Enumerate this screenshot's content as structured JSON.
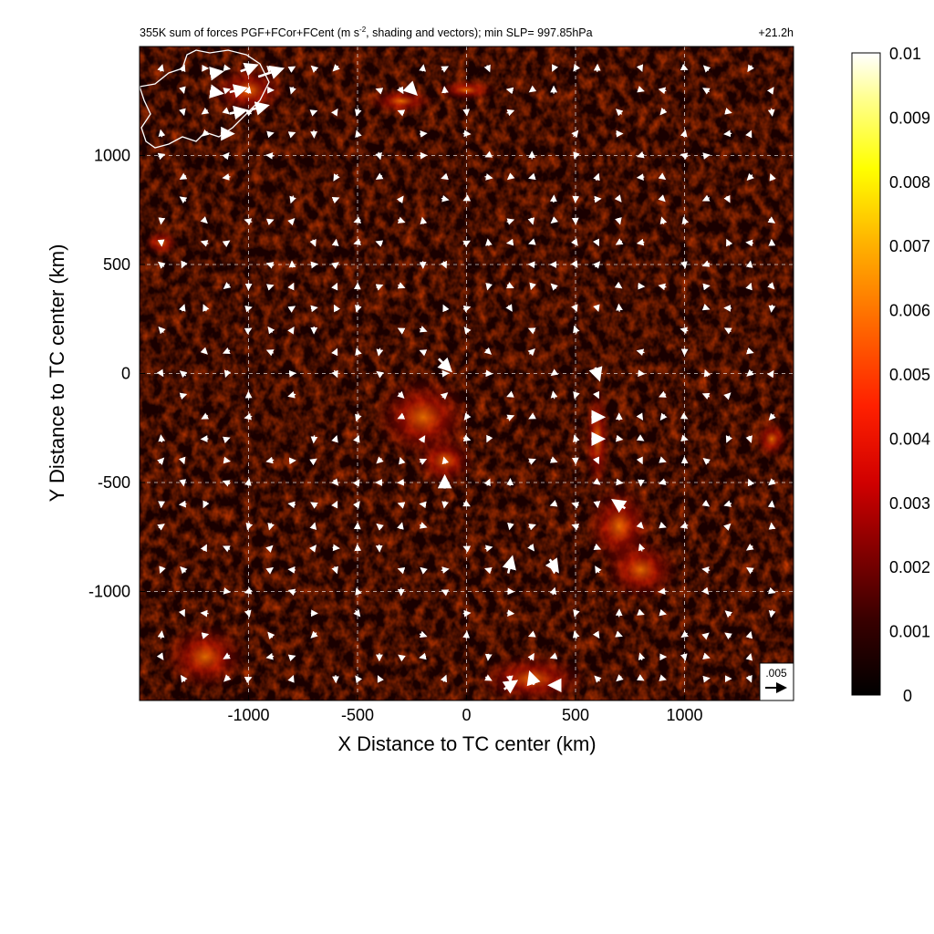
{
  "title": {
    "prefix": "355K sum of forces PGF+FCor+FCent (m s",
    "superscript": "-2",
    "suffix": ", shading and vectors); min SLP= 997.85hPa",
    "time": "+21.2h"
  },
  "reference_vector": {
    "label": ".005"
  },
  "colors": {
    "low": "#000000",
    "mid_low": "#3a0000",
    "mid": "#b00000",
    "red": "#ff2000",
    "orange": "#ff9000",
    "yellow": "#ffff00",
    "high": "#ffffff",
    "grid": "#ffffff",
    "coastline": "#ffffff",
    "vectors": "#ffffff"
  },
  "chart_data": {
    "type": "heatmap",
    "xlabel": "X Distance to TC center (km)",
    "ylabel": "Y Distance to TC center (km)",
    "xlim": [
      -1500,
      1500
    ],
    "ylim": [
      -1500,
      1500
    ],
    "x_ticks": [
      -1000,
      -500,
      0,
      500,
      1000
    ],
    "y_ticks": [
      -1000,
      -500,
      0,
      500,
      1000
    ],
    "x_tick_labels": [
      "-1000",
      "-500",
      "0",
      "500",
      "1000"
    ],
    "y_tick_labels": [
      "-1000",
      "-500",
      "0",
      "500",
      "1000"
    ],
    "grid": true,
    "colorbar": {
      "min": 0,
      "max": 0.01,
      "ticks": [
        0,
        0.001,
        0.002,
        0.003,
        0.004,
        0.005,
        0.006,
        0.007,
        0.008,
        0.009,
        0.01
      ],
      "tick_labels": [
        "0",
        "0.001",
        "0.002",
        "0.003",
        "0.004",
        "0.005",
        "0.006",
        "0.007",
        "0.008",
        "0.009",
        "0.01"
      ],
      "placement": "right"
    },
    "reference_vector_magnitude": 0.005,
    "large_vectors": [
      {
        "x": -1000,
        "y": 1400,
        "dx": 0.004,
        "dy": 0.0015
      },
      {
        "x": -900,
        "y": 1380,
        "dx": 0.006,
        "dy": 0.002
      },
      {
        "x": -1050,
        "y": 1300,
        "dx": 0.004,
        "dy": 0.001
      },
      {
        "x": -1050,
        "y": 1200,
        "dx": 0.004,
        "dy": 0.0008
      },
      {
        "x": -950,
        "y": 1220,
        "dx": 0.004,
        "dy": 0.001
      },
      {
        "x": -1150,
        "y": 1380,
        "dx": 0.003,
        "dy": 0.0005
      },
      {
        "x": -1150,
        "y": 1290,
        "dx": 0.003,
        "dy": -0.0005
      },
      {
        "x": -1100,
        "y": 1100,
        "dx": 0.003,
        "dy": 0.0
      },
      {
        "x": -250,
        "y": 1300,
        "dx": 0.002,
        "dy": -0.002
      },
      {
        "x": -100,
        "y": 40,
        "dx": 0.003,
        "dy": -0.003
      },
      {
        "x": 600,
        "y": 0,
        "dx": 0.001,
        "dy": -0.003
      },
      {
        "x": 600,
        "y": -200,
        "dx": 0.003,
        "dy": 0.0
      },
      {
        "x": 600,
        "y": -300,
        "dx": 0.003,
        "dy": 0.0
      },
      {
        "x": 700,
        "y": -600,
        "dx": -0.003,
        "dy": 0.002
      },
      {
        "x": 200,
        "y": -880,
        "dx": 0.001,
        "dy": 0.004
      },
      {
        "x": 400,
        "y": -880,
        "dx": 0.002,
        "dy": -0.003
      },
      {
        "x": 200,
        "y": -1430,
        "dx": 0.003,
        "dy": 0.002
      },
      {
        "x": 300,
        "y": -1400,
        "dx": -0.001,
        "dy": 0.003
      },
      {
        "x": 400,
        "y": -1430,
        "dx": -0.002,
        "dy": 0.0
      },
      {
        "x": -100,
        "y": -500,
        "dx": 0.0,
        "dy": 0.003
      }
    ]
  }
}
